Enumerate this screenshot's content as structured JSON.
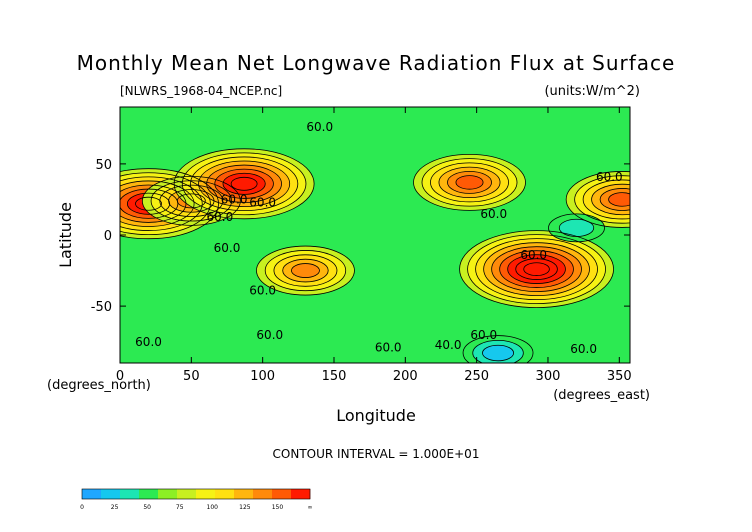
{
  "chart_data": {
    "type": "heatmap",
    "title": "Monthly Mean Net Longwave Radiation Flux at Surface",
    "file_label": "[NLWRS_1968-04_NCEP.nc]",
    "units_label": "(units:W/m^2)",
    "xlabel": "Longitude",
    "ylabel": "Latitude",
    "x_unit_label": "(degrees_east)",
    "y_unit_label": "(degrees_north)",
    "xlim": [
      0,
      357.5
    ],
    "ylim": [
      -90,
      90
    ],
    "x_ticks": [
      0,
      50,
      100,
      150,
      200,
      250,
      300,
      350
    ],
    "y_ticks": [
      50,
      0,
      -50
    ],
    "contour_interval_text": "CONTOUR INTERVAL = 1.000E+01",
    "contour_labels": [
      {
        "text": "60.0",
        "lon": 70,
        "lat": 10
      },
      {
        "text": "60.0",
        "lon": 80,
        "lat": 22
      },
      {
        "text": "60.0",
        "lon": 75,
        "lat": -12
      },
      {
        "text": "60.0",
        "lon": 100,
        "lat": 20
      },
      {
        "text": "60.0",
        "lon": 140,
        "lat": 73
      },
      {
        "text": "60.0",
        "lon": 100,
        "lat": -42
      },
      {
        "text": "60.0",
        "lon": 262,
        "lat": 12
      },
      {
        "text": "60.0",
        "lon": 290,
        "lat": -17
      },
      {
        "text": "60.0",
        "lon": 343,
        "lat": 38
      },
      {
        "text": "60.0",
        "lon": 20,
        "lat": -78
      },
      {
        "text": "60.0",
        "lon": 105,
        "lat": -73
      },
      {
        "text": "60.0",
        "lon": 255,
        "lat": -73
      },
      {
        "text": "60.0",
        "lon": 188,
        "lat": -82
      },
      {
        "text": "40.0",
        "lon": 230,
        "lat": -80
      },
      {
        "text": "60.0",
        "lon": 325,
        "lat": -83
      }
    ],
    "colorbar": {
      "levels": [
        "0",
        "25",
        "50",
        "75",
        "100",
        "125",
        "150",
        "∞"
      ],
      "colors": [
        "#1fa7ff",
        "#16c8ee",
        "#1de6b3",
        "#2cea52",
        "#8cf024",
        "#c8f020",
        "#f6f214",
        "#ffe012",
        "#ffb60e",
        "#ff8a0a",
        "#ff5a05",
        "#ff1a00"
      ]
    },
    "features": [
      {
        "name": "sahara-high",
        "lon": 20,
        "lat": 22,
        "value": 150
      },
      {
        "name": "arabia-high",
        "lon": 50,
        "lat": 24,
        "value": 120
      },
      {
        "name": "tibet-high",
        "lon": 87,
        "lat": 36,
        "value": 160
      },
      {
        "name": "australia-high",
        "lon": 130,
        "lat": -25,
        "value": 115
      },
      {
        "name": "western-us-high",
        "lon": 245,
        "lat": 37,
        "value": 125
      },
      {
        "name": "andes-high",
        "lon": 292,
        "lat": -24,
        "value": 170
      },
      {
        "name": "mexico-high",
        "lon": 352,
        "lat": 25,
        "value": 135
      },
      {
        "name": "pacific-low",
        "lon": 320,
        "lat": 5,
        "value": 30
      },
      {
        "name": "antarctic-low",
        "lon": 265,
        "lat": -83,
        "value": 20
      }
    ],
    "background_value": 55
  }
}
